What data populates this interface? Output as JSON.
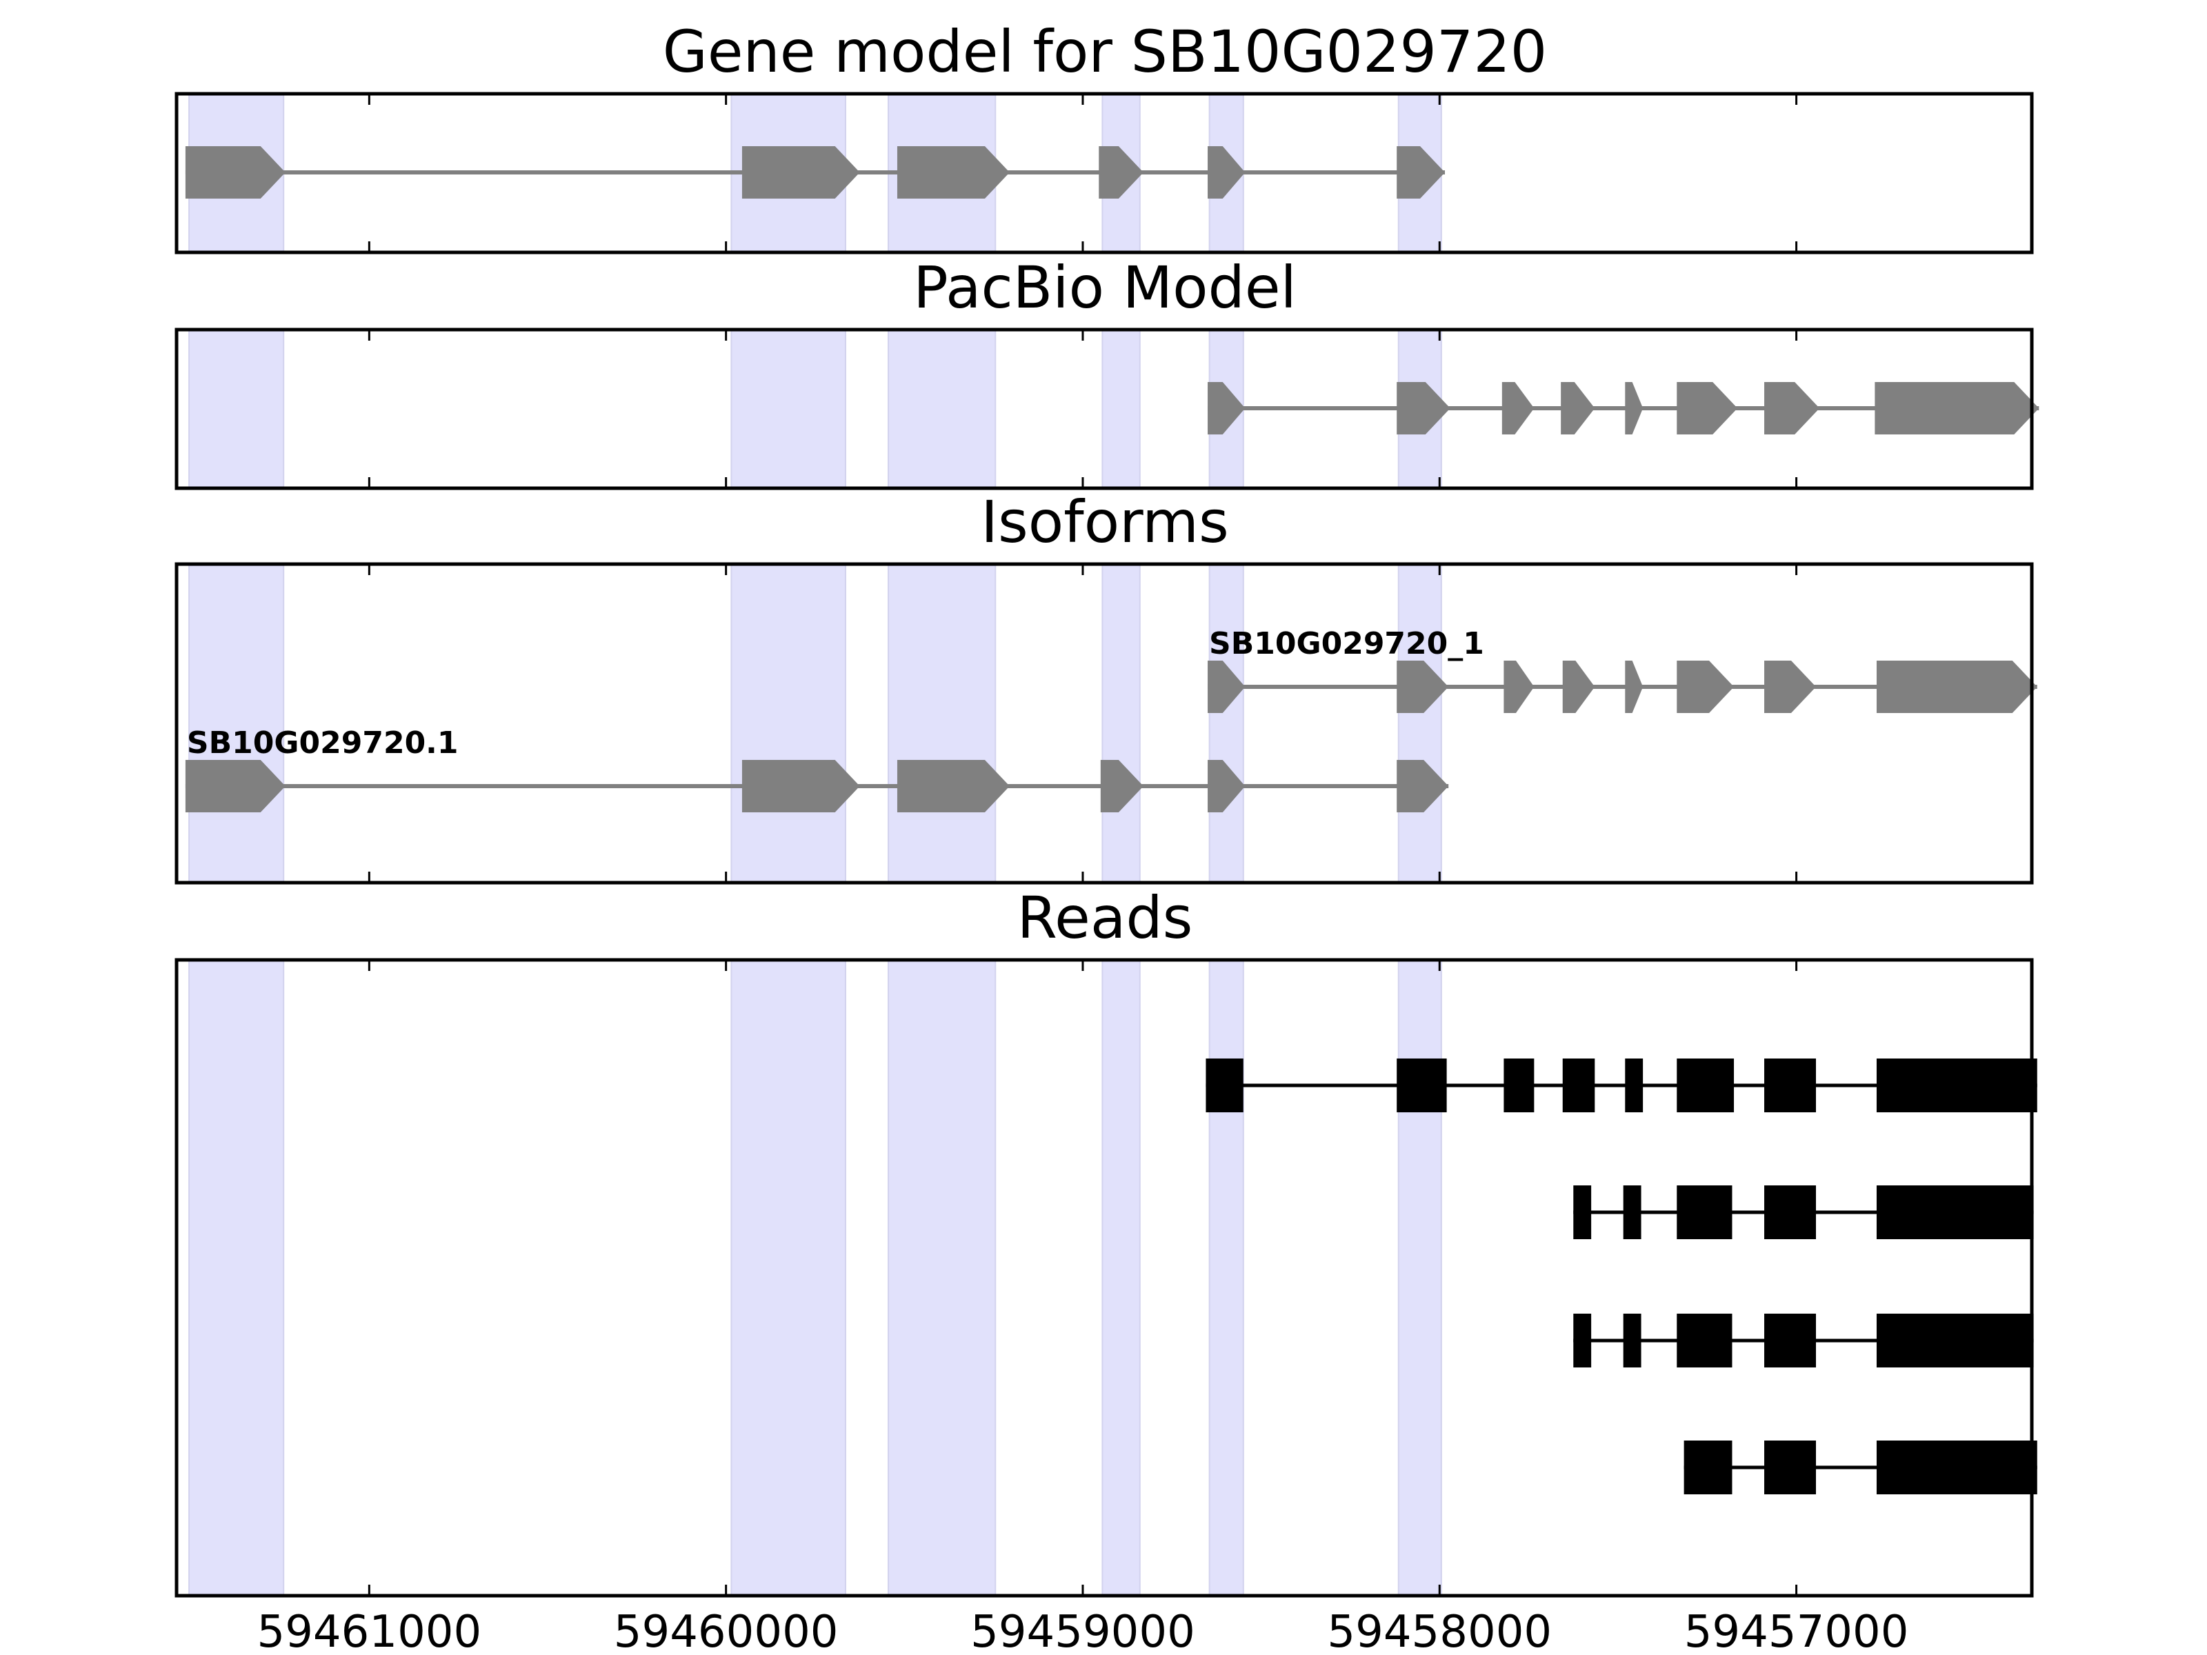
{
  "chart_data": {
    "type": "gene_model",
    "x_axis": {
      "reversed": true,
      "range": [
        59461540,
        59456340
      ],
      "ticks": [
        59461000,
        59460000,
        59459000,
        59458000,
        59457000
      ],
      "tick_labels": [
        "59461000",
        "59460000",
        "59459000",
        "59458000",
        "59457000"
      ]
    },
    "colors": {
      "highlight": "#e1e1fb",
      "feature": "#808080",
      "read": "#000000",
      "frame": "#000000"
    },
    "highlight_regions": [
      [
        59461505,
        59461240
      ],
      [
        59459985,
        59459665
      ],
      [
        59459545,
        59459245
      ],
      [
        59458945,
        59458840
      ],
      [
        59458645,
        59458550
      ],
      [
        59458115,
        59457995
      ]
    ],
    "panels": [
      {
        "title": "Gene model for SB10G029720",
        "tracks": [
          {
            "name": "SB10G029720",
            "label": "",
            "strand": "-",
            "style": "arrow",
            "exons": [
              [
                59461515,
                59461235
              ],
              [
                59459955,
                59459625
              ],
              [
                59459520,
                59459205
              ],
              [
                59458955,
                59458830
              ],
              [
                59458650,
                59458545
              ],
              [
                59458120,
                59457985
              ]
            ]
          }
        ]
      },
      {
        "title": "PacBio Model",
        "tracks": [
          {
            "name": "pacbio",
            "label": "",
            "strand": "-",
            "style": "arrow",
            "exons": [
              [
                59458650,
                59458545
              ],
              [
                59458120,
                59457970
              ],
              [
                59457825,
                59457735
              ],
              [
                59457660,
                59457565
              ],
              [
                59457480,
                59457430
              ],
              [
                59457335,
                59457165
              ],
              [
                59457090,
                59456935
              ],
              [
                59456780,
                59456320
              ]
            ]
          }
        ]
      },
      {
        "title": "Isoforms",
        "tracks": [
          {
            "name": "SB10G029720_1",
            "label": "SB10G029720_1",
            "strand": "-",
            "style": "arrow",
            "exons": [
              [
                59458650,
                59458545
              ],
              [
                59458120,
                59457975
              ],
              [
                59457820,
                59457735
              ],
              [
                59457655,
                59457565
              ],
              [
                59457480,
                59457430
              ],
              [
                59457335,
                59457175
              ],
              [
                59457090,
                59456945
              ],
              [
                59456775,
                59456325
              ]
            ]
          },
          {
            "name": "SB10G029720.1",
            "label": "SB10G029720.1",
            "strand": "-",
            "style": "arrow",
            "exons": [
              [
                59461515,
                59461235
              ],
              [
                59459955,
                59459625
              ],
              [
                59459520,
                59459205
              ],
              [
                59458950,
                59458830
              ],
              [
                59458650,
                59458545
              ],
              [
                59458120,
                59457975
              ]
            ]
          }
        ]
      },
      {
        "title": "Reads",
        "tracks": [
          {
            "name": "read-1",
            "label": "",
            "style": "box",
            "exons": [
              [
                59458655,
                59458550
              ],
              [
                59458120,
                59457980
              ],
              [
                59457820,
                59457735
              ],
              [
                59457655,
                59457565
              ],
              [
                59457480,
                59457430
              ],
              [
                59457335,
                59457175
              ],
              [
                59457090,
                59456945
              ],
              [
                59456775,
                59456325
              ]
            ]
          },
          {
            "name": "read-2",
            "label": "",
            "style": "box",
            "exons": [
              [
                59457625,
                59457575
              ],
              [
                59457485,
                59457435
              ],
              [
                59457335,
                59457180
              ],
              [
                59457090,
                59456945
              ],
              [
                59456775,
                59456335
              ]
            ]
          },
          {
            "name": "read-3",
            "label": "",
            "style": "box",
            "exons": [
              [
                59457625,
                59457575
              ],
              [
                59457485,
                59457435
              ],
              [
                59457335,
                59457180
              ],
              [
                59457090,
                59456945
              ],
              [
                59456775,
                59456335
              ]
            ]
          },
          {
            "name": "read-4",
            "label": "",
            "style": "box",
            "exons": [
              [
                59457315,
                59457180
              ],
              [
                59457090,
                59456945
              ],
              [
                59456775,
                59456325
              ]
            ]
          }
        ]
      }
    ]
  }
}
